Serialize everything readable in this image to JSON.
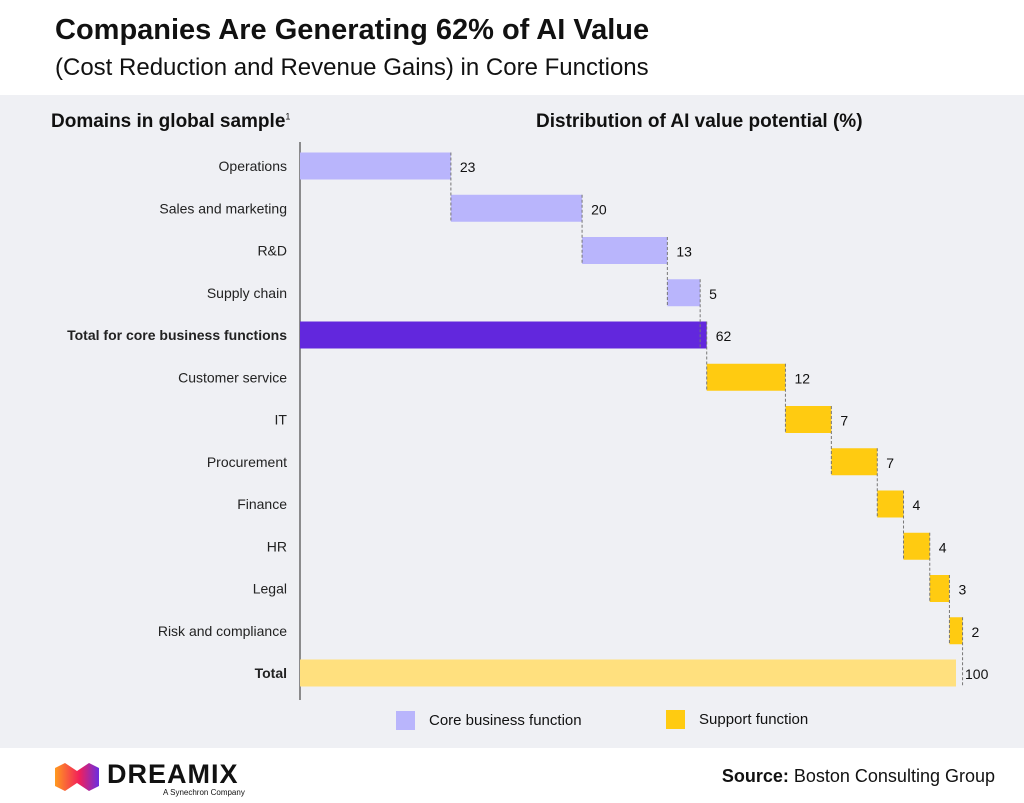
{
  "header": {
    "title": "Companies Are Generating 62% of AI Value",
    "subtitle": "(Cost Reduction and Revenue Gains) in Core Functions"
  },
  "chart_data": {
    "type": "bar",
    "subtype": "waterfall",
    "ylabel": "Domains in global sample",
    "ylabel_footnote": "1",
    "xlabel": "Distribution of AI value potential (%)",
    "xlim": [
      0,
      100
    ],
    "categories": [
      "Operations",
      "Sales and marketing",
      "R&D",
      "Supply chain",
      "Total for core business functions",
      "Customer service",
      "IT",
      "Procurement",
      "Finance",
      "HR",
      "Legal",
      "Risk and compliance",
      "Total"
    ],
    "values": [
      23,
      20,
      13,
      5,
      62,
      12,
      7,
      7,
      4,
      4,
      3,
      2,
      100
    ],
    "kinds": [
      "core",
      "core",
      "core",
      "core",
      "core-total",
      "support",
      "support",
      "support",
      "support",
      "support",
      "support",
      "support",
      "total"
    ],
    "bold": [
      false,
      false,
      false,
      false,
      true,
      false,
      false,
      false,
      false,
      false,
      false,
      false,
      true
    ],
    "legend": [
      {
        "label": "Core business function",
        "color": "#b9b5fc"
      },
      {
        "label": "Support function",
        "color": "#ffcb11"
      }
    ],
    "legend_placement": "bottom"
  },
  "colors": {
    "core": "#b9b5fc",
    "core-total": "#6227dd",
    "support": "#ffcb11",
    "total": "#ffe07e"
  },
  "footer": {
    "source_label": "Source:",
    "source": "Boston Consulting Group",
    "logo_text": "DREAMIX",
    "logo_tagline": "A Synechron Company"
  }
}
